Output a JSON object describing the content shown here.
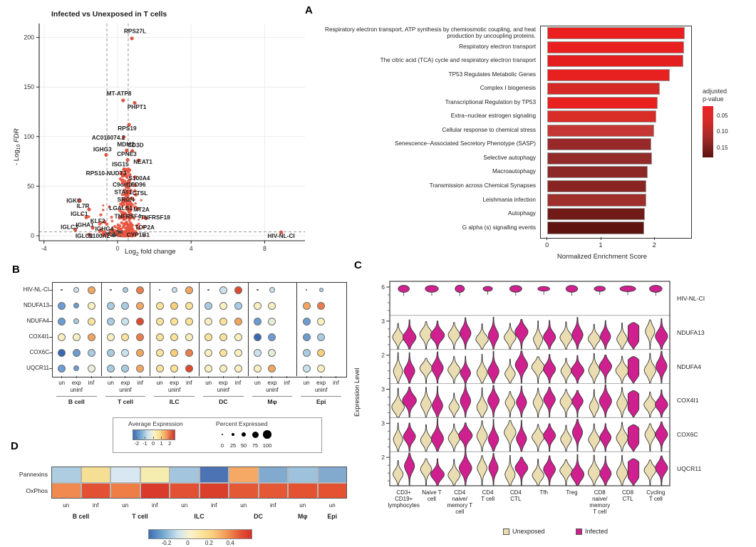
{
  "figure": {
    "panel_a": "A",
    "panel_b": "B",
    "panel_c": "C",
    "panel_d": "D"
  },
  "chart_data": [
    {
      "id": "volcano",
      "type": "scatter",
      "title": "Infected vs Unexposed in T cells",
      "xlabel": {
        "prefix": "Log",
        "sub": "2",
        "suffix": " fold change"
      },
      "ylabel": {
        "prefix": "- Log",
        "sub": "10",
        "suffix": " FDR"
      },
      "x_ticks": [
        -4,
        0,
        4,
        8
      ],
      "y_ticks": [
        0,
        50,
        100,
        150,
        200
      ],
      "xlim": [
        -4.3,
        10.2
      ],
      "ylim": [
        -8,
        212
      ],
      "fc_thresholds": [
        -0.58,
        0.58
      ],
      "fdr_threshold_y": 4,
      "sig_color": "#E8543F",
      "ns_color": "#3f3f3f",
      "genes": [
        [
          "RPS27L",
          0.78,
          199,
          0.95,
          204.5
        ],
        [
          "MT-ATP8",
          0.3,
          136.5,
          0.08,
          141.5
        ],
        [
          "PHPT1",
          0.93,
          134,
          1.05,
          128
        ],
        [
          "RPS19",
          0.62,
          112,
          0.52,
          106.5
        ],
        [
          "AC016074.2",
          0.33,
          99.5,
          -0.5,
          97
        ],
        [
          "MDM2",
          0.5,
          86,
          0.45,
          90
        ],
        [
          "CD3D",
          0.8,
          85.5,
          0.98,
          89.5
        ],
        [
          "IGHG3",
          -0.62,
          81.5,
          -0.82,
          85
        ],
        [
          "CPNE3",
          0.55,
          76.5,
          0.5,
          80.5
        ],
        [
          "NEAT1",
          1.15,
          76,
          1.38,
          72.5
        ],
        [
          "ISG15",
          0.35,
          67,
          0.15,
          70
        ],
        [
          "RPS10-NUDT3",
          0.35,
          61,
          -0.62,
          61
        ],
        [
          "S100A4",
          0.95,
          59,
          1.18,
          56
        ],
        [
          "C9orf16",
          0.55,
          50.5,
          0.33,
          49.5
        ],
        [
          "CD96",
          0.95,
          51,
          1.12,
          49.5
        ],
        [
          "STAT1",
          0.5,
          44,
          0.3,
          42
        ],
        [
          "CTSL",
          1.0,
          41.5,
          1.22,
          41
        ],
        [
          "IGKC",
          -2.05,
          35.5,
          -2.38,
          33.5
        ],
        [
          "SRGN",
          0.55,
          37,
          0.45,
          34.5
        ],
        [
          "IL7R",
          -1.55,
          26.5,
          -1.88,
          28
        ],
        [
          "LGALS1",
          0.55,
          27.5,
          0.18,
          26
        ],
        [
          "MT2A",
          1.1,
          27,
          1.3,
          24.5
        ],
        [
          "IGLC1",
          -1.7,
          18.5,
          -2.08,
          20
        ],
        [
          "TNFRSF4",
          0.75,
          19,
          0.55,
          17.5
        ],
        [
          "TNFRSF18",
          1.55,
          17.5,
          2.05,
          16.5
        ],
        [
          "KLF2",
          -0.7,
          14,
          -1.08,
          13
        ],
        [
          "IGHA1",
          -1.35,
          8,
          -1.78,
          9
        ],
        [
          "IGLC3",
          -2.3,
          6,
          -2.62,
          7
        ],
        [
          "IGHG4",
          -0.35,
          5,
          -0.72,
          5
        ],
        [
          "TOP2A",
          1.15,
          7.5,
          1.48,
          6.5
        ],
        [
          "IGLC2",
          -1.55,
          1,
          -1.82,
          -2
        ],
        [
          "S100A2",
          -0.8,
          1,
          -1.0,
          -2
        ],
        [
          "CYP1B1",
          0.85,
          1.5,
          1.12,
          -1
        ],
        [
          "HIV-NL-CI",
          8.9,
          3.5,
          8.9,
          -2
        ]
      ]
    },
    {
      "id": "enrichment",
      "type": "bar",
      "xlabel": "Normalized Enrichment Score",
      "x_ticks": [
        0,
        1,
        2
      ],
      "legend": {
        "title_line1": "adjusted",
        "title_line2": "p-value",
        "ticks": [
          "0.05",
          "0.10",
          "0.15"
        ]
      },
      "bars": [
        {
          "label": "Respiratory electron transport, ATP synthesis by chemiosmotic coupling, and heat production by uncoupling proteins.",
          "value": 2.57,
          "color": "#E9201F"
        },
        {
          "label": "Respiratory electron transport",
          "value": 2.56,
          "color": "#E9201F"
        },
        {
          "label": "The citric acid (TCA) cycle and respiratory electron transport",
          "value": 2.54,
          "color": "#E41D1E"
        },
        {
          "label": "TP53 Regulates Metabolic Genes",
          "value": 2.29,
          "color": "#E72120"
        },
        {
          "label": "Complex I biogenesis",
          "value": 2.1,
          "color": "#D62927"
        },
        {
          "label": "Transcriptional Regulation by TP53",
          "value": 2.06,
          "color": "#E92020"
        },
        {
          "label": "Extra–nuclear estrogen signaling",
          "value": 2.03,
          "color": "#D92D28"
        },
        {
          "label": "Cellular response to chemical stress",
          "value": 1.99,
          "color": "#C43732"
        },
        {
          "label": "Senescence–Associated Secretory Phenotype (SASP)",
          "value": 1.94,
          "color": "#97292A"
        },
        {
          "label": "Selective autophagy",
          "value": 1.95,
          "color": "#942B2B"
        },
        {
          "label": "Macroautophagy",
          "value": 1.88,
          "color": "#8C2826"
        },
        {
          "label": "Transmission across Chemical Synapses",
          "value": 1.85,
          "color": "#882523"
        },
        {
          "label": "Leishmania infection",
          "value": 1.85,
          "color": "#9E2F2C"
        },
        {
          "label": "Autophagy",
          "value": 1.82,
          "color": "#701B17"
        },
        {
          "label": "G alpha (s) signalling events",
          "value": 1.81,
          "color": "#5F1310"
        }
      ]
    },
    {
      "id": "dotplot",
      "type": "dot-matrix",
      "genes": [
        "HIV-NL-CI",
        "NDUFA13",
        "NDUFA4",
        "COX4I1",
        "COX6C",
        "UQCR11"
      ],
      "groups": [
        "B cell",
        "T cell",
        "ILC",
        "DC",
        "Mφ",
        "Epi"
      ],
      "conditions": [
        "un",
        "exp",
        "inf"
      ],
      "condition_subline": "uninf",
      "dots": [
        [
          [
            "#555555",
            2.5
          ],
          [
            "#CBE2EE",
            8
          ],
          [
            "#F3A660",
            11
          ],
          [
            "#555555",
            2.5
          ],
          [
            "#A9CCE2",
            8
          ],
          [
            "#EB7D4C",
            11
          ],
          [
            "#555555",
            2.5
          ],
          [
            "#CBE2EE",
            8
          ],
          [
            "#F3A660",
            11
          ],
          [
            "#555555",
            2.5
          ],
          [
            "#CBE2EE",
            11
          ],
          [
            "#DD4A2F",
            11
          ],
          [
            "#555555",
            2.5
          ],
          [
            "#CBE2EE",
            8
          ],
          null,
          [
            "#555555",
            2.5
          ],
          [
            "#A9CCE2",
            6
          ],
          null
        ],
        [
          [
            "#6C9CD1",
            11
          ],
          [
            "#6C9CD1",
            8
          ],
          [
            "#F9F0C0",
            11
          ],
          [
            "#A9CCE2",
            11
          ],
          [
            "#A9CCE2",
            11
          ],
          [
            "#F3A660",
            11
          ],
          [
            "#FBE39A",
            11
          ],
          [
            "#FACF7E",
            11
          ],
          [
            "#FBE39A",
            11
          ],
          [
            "#A9CCE2",
            11
          ],
          [
            "#F9F0C0",
            11
          ],
          [
            "#A9CCE2",
            11
          ],
          [
            "#F9F0C0",
            11
          ],
          [
            "#F9F0C0",
            11
          ],
          null,
          [
            "#F3A660",
            11
          ],
          [
            "#EB7D4C",
            11
          ],
          null
        ],
        [
          [
            "#6C9CD1",
            11
          ],
          [
            "#A9CCE2",
            8
          ],
          [
            "#FBE39A",
            11
          ],
          [
            "#A9CCE2",
            11
          ],
          [
            "#CBE2EE",
            11
          ],
          [
            "#DD4A2F",
            11
          ],
          [
            "#FBE39A",
            11
          ],
          [
            "#FBE39A",
            11
          ],
          [
            "#FBE39A",
            11
          ],
          [
            "#F9F0C0",
            11
          ],
          [
            "#FBE39A",
            11
          ],
          [
            "#F3A660",
            11
          ],
          [
            "#6C9CD1",
            11
          ],
          [
            "#E6EFD8",
            11
          ],
          null,
          [
            "#6C9CD1",
            11
          ],
          [
            "#F9F0C0",
            11
          ],
          null
        ],
        [
          [
            "#F9F0C0",
            11
          ],
          [
            "#F9F0C0",
            11
          ],
          [
            "#F3A660",
            11
          ],
          [
            "#F9F0C0",
            11
          ],
          [
            "#FBE39A",
            11
          ],
          [
            "#EB7D4C",
            11
          ],
          [
            "#FBE39A",
            11
          ],
          [
            "#FBE39A",
            11
          ],
          [
            "#F9F0C0",
            11
          ],
          [
            "#FBE39A",
            11
          ],
          [
            "#FBE39A",
            11
          ],
          [
            "#F9F0C0",
            11
          ],
          [
            "#3A68B0",
            11
          ],
          [
            "#6C9CD1",
            11
          ],
          null,
          [
            "#6C9CD1",
            11
          ],
          [
            "#A9CCE2",
            11
          ],
          null
        ],
        [
          [
            "#3A68B0",
            11
          ],
          [
            "#6C9CD1",
            11
          ],
          [
            "#A9CCE2",
            11
          ],
          [
            "#A9CCE2",
            11
          ],
          [
            "#CBE2EE",
            11
          ],
          [
            "#F3A660",
            11
          ],
          [
            "#FBE39A",
            11
          ],
          [
            "#FACF7E",
            11
          ],
          [
            "#EB7D4C",
            11
          ],
          [
            "#F9F0C0",
            11
          ],
          [
            "#FBE39A",
            11
          ],
          [
            "#F9F0C0",
            11
          ],
          [
            "#CBE2EE",
            11
          ],
          [
            "#E6EFD8",
            11
          ],
          null,
          [
            "#A9CCE2",
            11
          ],
          [
            "#FACF7E",
            11
          ],
          null
        ],
        [
          [
            "#6C9CD1",
            11
          ],
          [
            "#6C9CD1",
            8
          ],
          [
            "#E6EFD8",
            11
          ],
          [
            "#A9CCE2",
            11
          ],
          [
            "#A9CCE2",
            11
          ],
          [
            "#F3A660",
            11
          ],
          [
            "#FBE39A",
            11
          ],
          [
            "#FBE39A",
            11
          ],
          [
            "#DD4A2F",
            11
          ],
          [
            "#F9F0C0",
            11
          ],
          [
            "#F9F0C0",
            11
          ],
          [
            "#F9F0C0",
            11
          ],
          [
            "#F9F0C0",
            11
          ],
          [
            "#F3A660",
            11
          ],
          null,
          [
            "#CBE2EE",
            11
          ],
          [
            "#F9F0C0",
            11
          ],
          null
        ]
      ],
      "legend": {
        "avg_title": "Average Expression",
        "avg_ticks": [
          "-2",
          "-1",
          "0",
          "1",
          "2"
        ],
        "pct_title": "Percent Expressed",
        "pct_ticks": [
          "0",
          "25",
          "50",
          "75",
          "100"
        ]
      }
    },
    {
      "id": "violins",
      "type": "violin",
      "ylabel": "Expression Level",
      "rows": [
        {
          "gene": "HIV-NL-CI",
          "tick": "6"
        },
        {
          "gene": "NDUFA13",
          "tick": "3"
        },
        {
          "gene": "NDUFA4",
          "tick": "2"
        },
        {
          "gene": "COX4I1",
          "tick": "3"
        },
        {
          "gene": "COX6C",
          "tick": "3"
        },
        {
          "gene": "UQCR11",
          "tick": "2"
        }
      ],
      "categories": [
        [
          "CD3+",
          "CD19+",
          "lymphocytes"
        ],
        [
          "Naive T",
          "cell"
        ],
        [
          "CD4",
          "naive/",
          "memory T",
          "cell"
        ],
        [
          "CD4",
          "T cell"
        ],
        [
          "CD4",
          "CTL"
        ],
        [
          "Tfh"
        ],
        [
          "Treg"
        ],
        [
          "CD8",
          "naive/",
          "memory",
          "T cell"
        ],
        [
          "CD8",
          "CTL"
        ],
        [
          "Cycling",
          "T cell"
        ]
      ],
      "series": [
        {
          "name": "Unexposed",
          "color": "#EBDDB2"
        },
        {
          "name": "Infected",
          "color": "#D0208F"
        }
      ]
    },
    {
      "id": "pathway_heatmap",
      "type": "heatmap",
      "rows": [
        "Pannexins",
        "OxPhos"
      ],
      "col_conditions": [
        "un",
        "inf",
        "un",
        "inf",
        "un",
        "inf",
        "un",
        "inf",
        "un",
        "un"
      ],
      "col_groups": [
        {
          "name": "B cell",
          "span": 2
        },
        {
          "name": "T cell",
          "span": 2
        },
        {
          "name": "ILC",
          "span": 2
        },
        {
          "name": "DC",
          "span": 2
        },
        {
          "name": "Mφ",
          "span": 1
        },
        {
          "name": "Epi",
          "span": 1
        }
      ],
      "cell_colors": [
        [
          "#AECDE1",
          "#F5DF94",
          "#D8E7F1",
          "#F5ECB0",
          "#A3C6DE",
          "#4C74B4",
          "#F5A965",
          "#82AACE",
          "#9FC2DC",
          "#82AACE"
        ],
        [
          "#F08A50",
          "#E25133",
          "#EE7E46",
          "#D93A2B",
          "#E25133",
          "#DA3F2C",
          "#E55836",
          "#E55836",
          "#E55232",
          "#E55232"
        ]
      ],
      "colorbar_ticks": [
        "-0.2",
        "0",
        "0.2",
        "0.4"
      ]
    }
  ]
}
